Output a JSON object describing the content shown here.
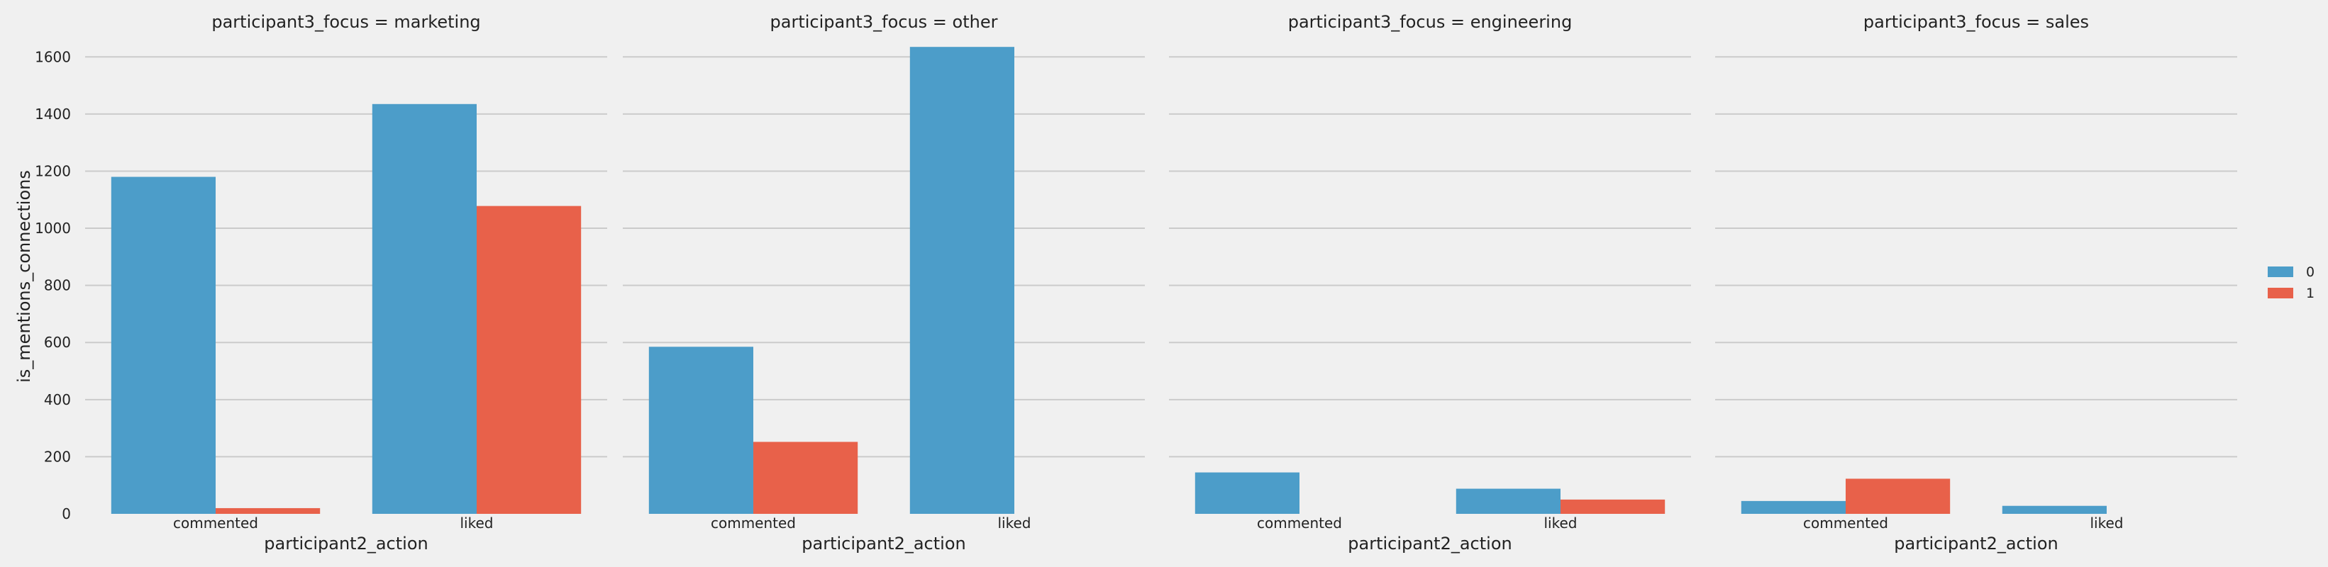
{
  "chart_data": {
    "type": "bar",
    "facet_variable": "participant3_focus",
    "xlabel": "participant2_action",
    "ylabel": "is_mentions_connections",
    "categories": [
      "commented",
      "liked"
    ],
    "ylim": [
      0,
      1700
    ],
    "yticks": [
      0,
      200,
      400,
      600,
      800,
      1000,
      1200,
      1400,
      1600
    ],
    "grid": true,
    "legend": {
      "placement": "right",
      "entries": [
        {
          "label": "0",
          "color": "#4c9dc9"
        },
        {
          "label": "1",
          "color": "#e8614a"
        }
      ]
    },
    "series_colors": [
      "#4c9dc9",
      "#e8614a"
    ],
    "facets": [
      {
        "title": "participant3_focus = marketing",
        "series": [
          {
            "name": "0",
            "values": [
              1180,
              1435
            ]
          },
          {
            "name": "1",
            "values": [
              20,
              1078
            ]
          }
        ]
      },
      {
        "title": "participant3_focus = other",
        "series": [
          {
            "name": "0",
            "values": [
              585,
              1635
            ]
          },
          {
            "name": "1",
            "values": [
              252,
              null
            ]
          }
        ]
      },
      {
        "title": "participant3_focus = engineering",
        "series": [
          {
            "name": "0",
            "values": [
              145,
              88
            ]
          },
          {
            "name": "1",
            "values": [
              null,
              50
            ]
          }
        ]
      },
      {
        "title": "participant3_focus = sales",
        "series": [
          {
            "name": "0",
            "values": [
              45,
              28
            ]
          },
          {
            "name": "1",
            "values": [
              123,
              null
            ]
          }
        ]
      }
    ]
  }
}
